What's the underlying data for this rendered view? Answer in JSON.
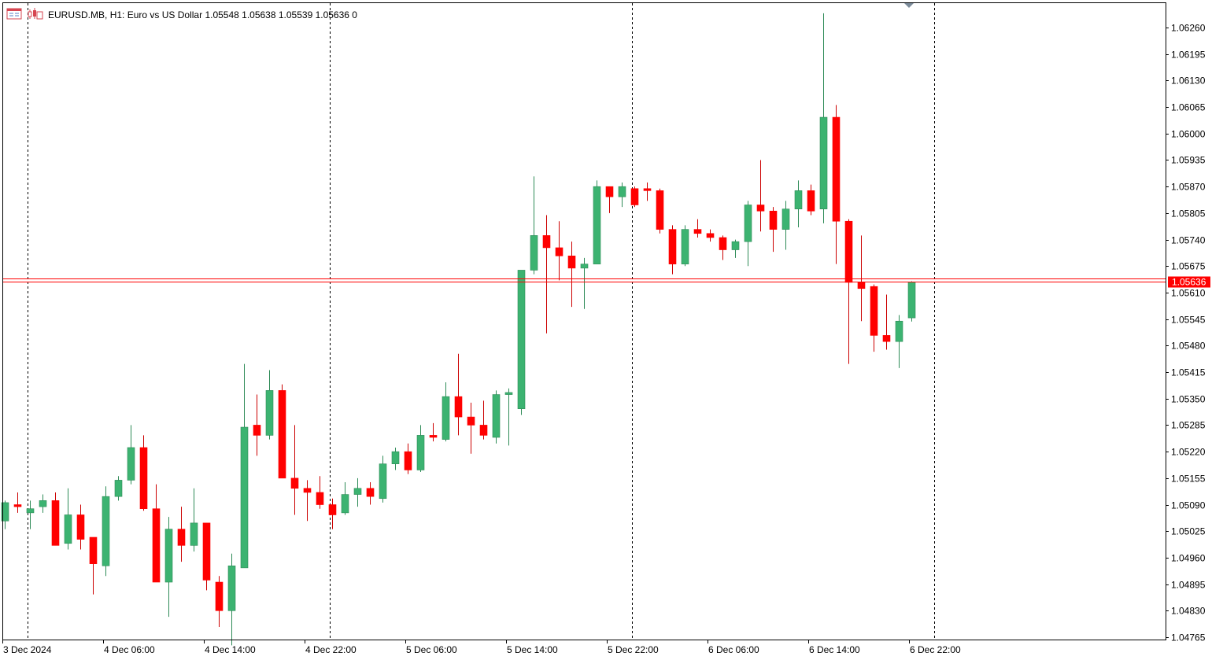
{
  "header": {
    "symbol": "EURUSD.MB",
    "timeframe": "H1:",
    "description": "Euro vs US Dollar",
    "ohlc": "1.05548 1.05638 1.05539 1.05636",
    "volume": "0",
    "icons": [
      "chart-menu-icon",
      "one-click-trading-icon"
    ]
  },
  "colors": {
    "background": "#ffffff",
    "frame": "#000000",
    "grid": "#000000",
    "bull": "#3cb371",
    "bear": "#ff0000",
    "wick": "#000000",
    "bid_line": "#ff0000",
    "ask_line": "#ff0000",
    "price_badge": "#ff0000",
    "shift_marker": "#7a8a99"
  },
  "current_price_label": "1.05636",
  "chart_data": {
    "type": "candlestick",
    "title": "",
    "xlabel": "",
    "ylabel": "",
    "ylim": [
      1.04705,
      1.06295
    ],
    "price_ticks": [
      "1.06260",
      "1.06195",
      "1.06130",
      "1.06065",
      "1.06000",
      "1.05935",
      "1.05870",
      "1.05805",
      "1.05740",
      "1.05675",
      "1.05610",
      "1.05545",
      "1.05480",
      "1.05415",
      "1.05350",
      "1.05285",
      "1.05220",
      "1.05155",
      "1.05090",
      "1.05025",
      "1.04960",
      "1.04895",
      "1.04830",
      "1.04765"
    ],
    "time_labels": [
      "3 Dec 2024",
      "4 Dec 06:00",
      "4 Dec 14:00",
      "4 Dec 22:00",
      "5 Dec 06:00",
      "5 Dec 14:00",
      "5 Dec 22:00",
      "6 Dec 06:00",
      "6 Dec 14:00",
      "6 Dec 22:00"
    ],
    "time_label_bars": [
      2,
      10,
      18,
      26,
      34,
      42,
      50,
      58,
      66,
      74
    ],
    "day_separator_bars": [
      4,
      28,
      52,
      76
    ],
    "bid_price": 1.05636,
    "ask_price": 1.05645,
    "grid": false,
    "candles": [
      {
        "o": 1.0505,
        "h": 1.051,
        "l": 1.0503,
        "c": 1.05095
      },
      {
        "o": 1.0509,
        "h": 1.0512,
        "l": 1.0507,
        "c": 1.05085
      },
      {
        "o": 1.0507,
        "h": 1.051,
        "l": 1.0503,
        "c": 1.0508
      },
      {
        "o": 1.05085,
        "h": 1.05115,
        "l": 1.0507,
        "c": 1.051
      },
      {
        "o": 1.051,
        "h": 1.0512,
        "l": 1.0499,
        "c": 1.0499
      },
      {
        "o": 1.04995,
        "h": 1.0513,
        "l": 1.0498,
        "c": 1.05065
      },
      {
        "o": 1.05065,
        "h": 1.0509,
        "l": 1.0498,
        "c": 1.05005
      },
      {
        "o": 1.0501,
        "h": 1.0501,
        "l": 1.0487,
        "c": 1.04945
      },
      {
        "o": 1.0494,
        "h": 1.05135,
        "l": 1.04915,
        "c": 1.0511
      },
      {
        "o": 1.0511,
        "h": 1.0516,
        "l": 1.051,
        "c": 1.0515
      },
      {
        "o": 1.0515,
        "h": 1.05285,
        "l": 1.0514,
        "c": 1.0523
      },
      {
        "o": 1.0523,
        "h": 1.0526,
        "l": 1.05075,
        "c": 1.0508
      },
      {
        "o": 1.0508,
        "h": 1.0514,
        "l": 1.049,
        "c": 1.049
      },
      {
        "o": 1.049,
        "h": 1.0506,
        "l": 1.04815,
        "c": 1.0503
      },
      {
        "o": 1.0503,
        "h": 1.05085,
        "l": 1.0495,
        "c": 1.0499
      },
      {
        "o": 1.0499,
        "h": 1.0513,
        "l": 1.04975,
        "c": 1.05045
      },
      {
        "o": 1.05045,
        "h": 1.05045,
        "l": 1.0488,
        "c": 1.04905
      },
      {
        "o": 1.049,
        "h": 1.04915,
        "l": 1.0479,
        "c": 1.0483
      },
      {
        "o": 1.0483,
        "h": 1.0497,
        "l": 1.04745,
        "c": 1.0494
      },
      {
        "o": 1.04935,
        "h": 1.05435,
        "l": 1.04935,
        "c": 1.0528
      },
      {
        "o": 1.05285,
        "h": 1.0536,
        "l": 1.0521,
        "c": 1.0526
      },
      {
        "o": 1.0526,
        "h": 1.0542,
        "l": 1.0525,
        "c": 1.0537
      },
      {
        "o": 1.0537,
        "h": 1.05385,
        "l": 1.05155,
        "c": 1.05155
      },
      {
        "o": 1.05155,
        "h": 1.05285,
        "l": 1.05065,
        "c": 1.0513
      },
      {
        "o": 1.0513,
        "h": 1.0515,
        "l": 1.0505,
        "c": 1.0512
      },
      {
        "o": 1.0512,
        "h": 1.0516,
        "l": 1.0508,
        "c": 1.0509
      },
      {
        "o": 1.0509,
        "h": 1.05105,
        "l": 1.0503,
        "c": 1.05065
      },
      {
        "o": 1.0507,
        "h": 1.05145,
        "l": 1.05065,
        "c": 1.05115
      },
      {
        "o": 1.05115,
        "h": 1.05155,
        "l": 1.05085,
        "c": 1.0513
      },
      {
        "o": 1.0513,
        "h": 1.05145,
        "l": 1.0509,
        "c": 1.0511
      },
      {
        "o": 1.05105,
        "h": 1.0521,
        "l": 1.05095,
        "c": 1.0519
      },
      {
        "o": 1.0519,
        "h": 1.0523,
        "l": 1.05175,
        "c": 1.0522
      },
      {
        "o": 1.0522,
        "h": 1.0524,
        "l": 1.05165,
        "c": 1.05175
      },
      {
        "o": 1.05175,
        "h": 1.05285,
        "l": 1.0517,
        "c": 1.0526
      },
      {
        "o": 1.0526,
        "h": 1.0529,
        "l": 1.05245,
        "c": 1.05255
      },
      {
        "o": 1.0525,
        "h": 1.0539,
        "l": 1.05245,
        "c": 1.05355
      },
      {
        "o": 1.05355,
        "h": 1.0546,
        "l": 1.0526,
        "c": 1.05305
      },
      {
        "o": 1.05305,
        "h": 1.0534,
        "l": 1.05215,
        "c": 1.05285
      },
      {
        "o": 1.05285,
        "h": 1.05345,
        "l": 1.0525,
        "c": 1.0526
      },
      {
        "o": 1.05255,
        "h": 1.0537,
        "l": 1.0524,
        "c": 1.0536
      },
      {
        "o": 1.0536,
        "h": 1.05375,
        "l": 1.05235,
        "c": 1.05365
      },
      {
        "o": 1.05325,
        "h": 1.05665,
        "l": 1.0531,
        "c": 1.05665
      },
      {
        "o": 1.05665,
        "h": 1.05895,
        "l": 1.05655,
        "c": 1.0575
      },
      {
        "o": 1.0575,
        "h": 1.058,
        "l": 1.0551,
        "c": 1.0572
      },
      {
        "o": 1.0572,
        "h": 1.05785,
        "l": 1.0564,
        "c": 1.057
      },
      {
        "o": 1.057,
        "h": 1.05735,
        "l": 1.05575,
        "c": 1.0567
      },
      {
        "o": 1.0567,
        "h": 1.05695,
        "l": 1.0557,
        "c": 1.0568
      },
      {
        "o": 1.0568,
        "h": 1.05885,
        "l": 1.0568,
        "c": 1.0587
      },
      {
        "o": 1.0587,
        "h": 1.0587,
        "l": 1.05805,
        "c": 1.05845
      },
      {
        "o": 1.05845,
        "h": 1.0588,
        "l": 1.0582,
        "c": 1.0587
      },
      {
        "o": 1.05865,
        "h": 1.0587,
        "l": 1.0582,
        "c": 1.05825
      },
      {
        "o": 1.05865,
        "h": 1.0588,
        "l": 1.05835,
        "c": 1.0586
      },
      {
        "o": 1.0586,
        "h": 1.05865,
        "l": 1.05755,
        "c": 1.05765
      },
      {
        "o": 1.05765,
        "h": 1.05775,
        "l": 1.05655,
        "c": 1.0568
      },
      {
        "o": 1.0568,
        "h": 1.05775,
        "l": 1.05675,
        "c": 1.05765
      },
      {
        "o": 1.05765,
        "h": 1.0579,
        "l": 1.05745,
        "c": 1.05755
      },
      {
        "o": 1.05755,
        "h": 1.05765,
        "l": 1.05735,
        "c": 1.05745
      },
      {
        "o": 1.05745,
        "h": 1.0575,
        "l": 1.0569,
        "c": 1.05715
      },
      {
        "o": 1.05715,
        "h": 1.0574,
        "l": 1.05695,
        "c": 1.05735
      },
      {
        "o": 1.05735,
        "h": 1.05835,
        "l": 1.05675,
        "c": 1.05825
      },
      {
        "o": 1.05825,
        "h": 1.05935,
        "l": 1.0576,
        "c": 1.0581
      },
      {
        "o": 1.0581,
        "h": 1.0582,
        "l": 1.0571,
        "c": 1.05765
      },
      {
        "o": 1.05765,
        "h": 1.05835,
        "l": 1.05715,
        "c": 1.05815
      },
      {
        "o": 1.05815,
        "h": 1.05885,
        "l": 1.0577,
        "c": 1.0586
      },
      {
        "o": 1.0586,
        "h": 1.05875,
        "l": 1.058,
        "c": 1.0581
      },
      {
        "o": 1.05815,
        "h": 1.06295,
        "l": 1.0578,
        "c": 1.0604
      },
      {
        "o": 1.0604,
        "h": 1.0607,
        "l": 1.0568,
        "c": 1.05785
      },
      {
        "o": 1.05785,
        "h": 1.0579,
        "l": 1.05435,
        "c": 1.05635
      },
      {
        "o": 1.05635,
        "h": 1.0575,
        "l": 1.0554,
        "c": 1.0562
      },
      {
        "o": 1.05625,
        "h": 1.0563,
        "l": 1.05465,
        "c": 1.05505
      },
      {
        "o": 1.05505,
        "h": 1.05605,
        "l": 1.0547,
        "c": 1.0549
      },
      {
        "o": 1.0549,
        "h": 1.05555,
        "l": 1.05425,
        "c": 1.0554
      },
      {
        "o": 1.05548,
        "h": 1.05638,
        "l": 1.05539,
        "c": 1.05636
      }
    ]
  }
}
